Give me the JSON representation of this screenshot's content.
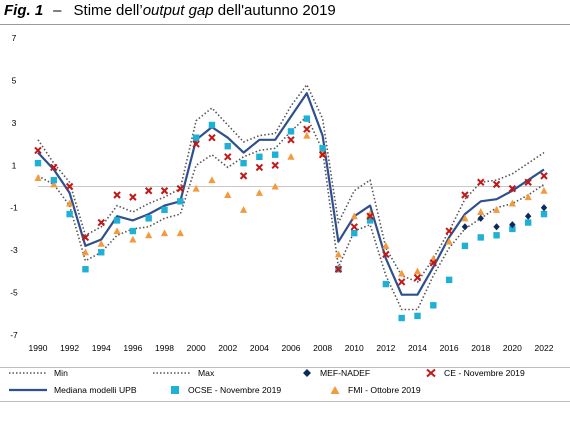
{
  "figure": {
    "label": "Fig. 1",
    "dash": "–",
    "title_pre": "Stime dell’",
    "title_em": "output gap",
    "title_post": " dell'autunno 2019"
  },
  "chart_data": {
    "type": "line",
    "title": "",
    "xlabel": "",
    "ylabel": "",
    "xlim": [
      1990,
      2022
    ],
    "ylim": [
      -7,
      7
    ],
    "yticks": [
      7,
      5,
      3,
      1,
      -1,
      -3,
      -5,
      -7
    ],
    "xticks": [
      1990,
      1992,
      1994,
      1996,
      1998,
      2000,
      2002,
      2004,
      2006,
      2008,
      2010,
      2012,
      2014,
      2016,
      2018,
      2020,
      2022
    ],
    "grid": false,
    "legend": "bottom",
    "series": [
      {
        "name": "Min",
        "style": "dotted",
        "color": "#555555",
        "x": [
          1990,
          1991,
          1992,
          1993,
          1994,
          1995,
          1996,
          1997,
          1998,
          1999,
          2000,
          2001,
          2002,
          2003,
          2004,
          2005,
          2006,
          2007,
          2008,
          2009,
          2010,
          2011,
          2012,
          2013,
          2014,
          2015,
          2016,
          2017,
          2018,
          2019,
          2020,
          2021,
          2022
        ],
        "values": [
          0.5,
          0.1,
          -0.9,
          -3.5,
          -3.1,
          -2.3,
          -2.0,
          -1.9,
          -1.5,
          -1.3,
          1.0,
          1.5,
          0.9,
          1.4,
          1.7,
          1.8,
          2.6,
          3.3,
          1.7,
          -3.8,
          -2.1,
          -1.8,
          -4.2,
          -5.8,
          -5.8,
          -4.2,
          -2.9,
          -2.0,
          -1.5,
          -1.0,
          -0.8,
          -0.4,
          0.1
        ]
      },
      {
        "name": "Max",
        "style": "dotted",
        "color": "#555555",
        "x": [
          1990,
          1991,
          1992,
          1993,
          1994,
          1995,
          1996,
          1997,
          1998,
          1999,
          2000,
          2001,
          2002,
          2003,
          2004,
          2005,
          2006,
          2007,
          2008,
          2009,
          2010,
          2011,
          2012,
          2013,
          2014,
          2015,
          2016,
          2017,
          2018,
          2019,
          2020,
          2021,
          2022
        ],
        "values": [
          2.2,
          1.1,
          0.2,
          -2.3,
          -1.9,
          -0.9,
          -1.2,
          -0.8,
          -0.5,
          -0.1,
          3.1,
          3.7,
          2.9,
          2.1,
          2.4,
          2.5,
          3.8,
          4.8,
          3.2,
          -1.7,
          -0.2,
          0.3,
          -2.9,
          -4.2,
          -4.5,
          -3.4,
          -2.1,
          -0.6,
          0.2,
          0.3,
          0.6,
          1.1,
          1.6
        ]
      },
      {
        "name": "Mediana modelli UPB",
        "style": "solid",
        "color": "#2f4f8f",
        "x": [
          1990,
          1991,
          1992,
          1993,
          1994,
          1995,
          1996,
          1997,
          1998,
          1999,
          2000,
          2001,
          2002,
          2003,
          2004,
          2005,
          2006,
          2007,
          2008,
          2009,
          2010,
          2011,
          2012,
          2013,
          2014,
          2015,
          2016,
          2017,
          2018,
          2019,
          2020,
          2021,
          2022
        ],
        "values": [
          1.6,
          0.8,
          -0.3,
          -2.8,
          -2.5,
          -1.4,
          -1.6,
          -1.3,
          -0.9,
          -0.7,
          2.2,
          2.8,
          2.3,
          1.6,
          2.2,
          2.2,
          3.3,
          4.4,
          2.4,
          -2.6,
          -1.4,
          -0.9,
          -3.4,
          -5.1,
          -5.1,
          -3.8,
          -2.4,
          -1.3,
          -0.7,
          -0.6,
          -0.2,
          0.3,
          0.8
        ]
      },
      {
        "name": "MEF-NADEF",
        "marker": "diamond",
        "color": "#0d2a5c",
        "x": [
          2017,
          2018,
          2019,
          2020,
          2021,
          2022
        ],
        "values": [
          -1.9,
          -1.5,
          -1.9,
          -1.8,
          -1.4,
          -1.0
        ]
      },
      {
        "name": "CE - Novembre 2019",
        "marker": "x",
        "color": "#c01818",
        "x": [
          1990,
          1991,
          1992,
          1993,
          1994,
          1995,
          1996,
          1997,
          1998,
          1999,
          2000,
          2001,
          2002,
          2003,
          2004,
          2005,
          2006,
          2007,
          2008,
          2009,
          2010,
          2011,
          2012,
          2013,
          2014,
          2015,
          2016,
          2017,
          2018,
          2019,
          2020,
          2021,
          2022
        ],
        "values": [
          1.7,
          0.9,
          0.0,
          -2.4,
          -1.7,
          -0.4,
          -0.5,
          -0.2,
          -0.2,
          -0.1,
          2.0,
          2.3,
          1.4,
          0.5,
          0.9,
          1.0,
          2.2,
          2.7,
          1.5,
          -3.9,
          -1.9,
          -1.4,
          -3.2,
          -4.5,
          -4.3,
          -3.6,
          -2.1,
          -0.4,
          0.2,
          0.1,
          -0.1,
          0.2,
          0.5
        ]
      },
      {
        "name": "OCSE - Novembre 2019",
        "marker": "square",
        "color": "#1fb0d6",
        "x": [
          1990,
          1991,
          1992,
          1993,
          1994,
          1995,
          1996,
          1997,
          1998,
          1999,
          2000,
          2001,
          2002,
          2003,
          2004,
          2005,
          2006,
          2007,
          2008,
          2009,
          2010,
          2011,
          2012,
          2013,
          2014,
          2015,
          2016,
          2017,
          2018,
          2019,
          2020,
          2021,
          2022
        ],
        "values": [
          1.1,
          0.3,
          -1.3,
          -3.9,
          -3.1,
          -1.6,
          -2.1,
          -1.5,
          -1.1,
          -0.7,
          2.3,
          2.9,
          1.9,
          1.1,
          1.4,
          1.5,
          2.6,
          3.2,
          1.8,
          -3.9,
          -2.2,
          -1.6,
          -4.6,
          -6.2,
          -6.1,
          -5.6,
          -4.4,
          -2.8,
          -2.4,
          -2.3,
          -2.0,
          -1.7,
          -1.3
        ]
      },
      {
        "name": "FMI - Ottobre 2019",
        "marker": "triangle",
        "color": "#f39a3c",
        "x": [
          1990,
          1991,
          1992,
          1993,
          1994,
          1995,
          1996,
          1997,
          1998,
          1999,
          2000,
          2001,
          2002,
          2003,
          2004,
          2005,
          2006,
          2007,
          2008,
          2009,
          2010,
          2011,
          2012,
          2013,
          2014,
          2015,
          2016,
          2017,
          2018,
          2019,
          2020,
          2021,
          2022
        ],
        "values": [
          0.4,
          0.1,
          -0.8,
          -3.1,
          -2.7,
          -2.1,
          -2.5,
          -2.3,
          -2.2,
          -2.2,
          -0.1,
          0.3,
          -0.4,
          -1.1,
          -0.3,
          0.0,
          1.4,
          2.4,
          1.6,
          -3.2,
          -1.4,
          -1.3,
          -2.8,
          -4.1,
          -4.0,
          -3.4,
          -2.6,
          -1.5,
          -1.2,
          -1.1,
          -0.8,
          -0.5,
          -0.2
        ]
      }
    ]
  }
}
